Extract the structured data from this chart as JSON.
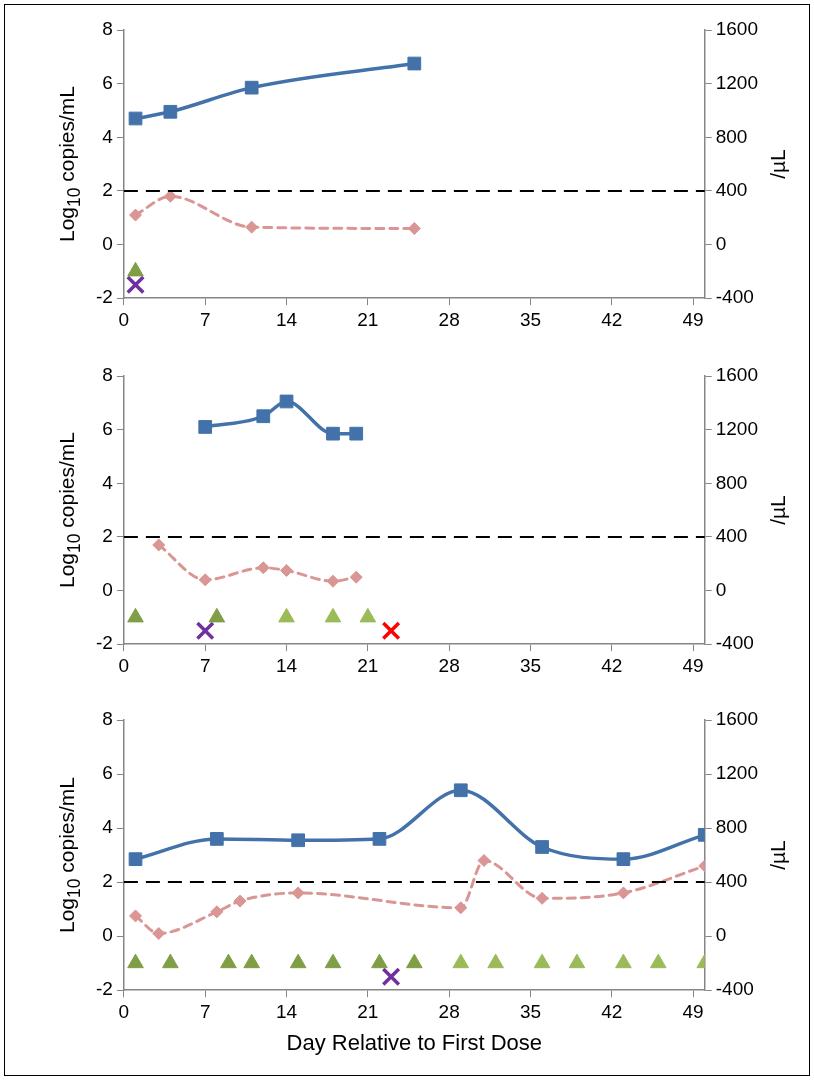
{
  "chart_data": [
    {
      "type": "line",
      "ylabel": "Log$_{10}$ copies/mL",
      "y2label": "/µL",
      "xlim": [
        0,
        50
      ],
      "xticks": [
        0,
        7,
        14,
        21,
        28,
        35,
        42,
        49
      ],
      "ylim": [
        -2,
        8
      ],
      "yticks": [
        -2,
        0,
        2,
        4,
        6,
        8
      ],
      "y2lim": [
        -400,
        1600
      ],
      "y2ticks": [
        -400,
        0,
        400,
        800,
        1200,
        1600
      ],
      "legend": false,
      "ref_lines": [
        {
          "axis": "y",
          "value": 2,
          "color": "#000000",
          "line_style": "dashed"
        }
      ],
      "series": [
        {
          "color": "#4372aa",
          "marker": "square",
          "line_style": "solid",
          "x": [
            1,
            4,
            11,
            25
          ],
          "values": [
            4.7,
            4.95,
            5.85,
            6.75
          ]
        },
        {
          "axis": "y2",
          "color": "#d99694",
          "marker": "diamond",
          "line_style": "dashed",
          "x": [
            1,
            4,
            11,
            25
          ],
          "values": [
            220,
            360,
            130,
            120
          ]
        },
        {
          "type": "scatter",
          "color": "#7f9e45",
          "marker": "triangle",
          "x": [
            1
          ],
          "values": [
            -1
          ]
        },
        {
          "type": "scatter",
          "color": "#7030a0",
          "marker": "cross",
          "x": [
            1
          ],
          "values": [
            -1.5
          ]
        }
      ]
    },
    {
      "type": "line",
      "ylabel": "Log$_{10}$ copies/mL",
      "y2label": "/µL",
      "xlim": [
        0,
        50
      ],
      "xticks": [
        0,
        7,
        14,
        21,
        28,
        35,
        42,
        49
      ],
      "ylim": [
        -2,
        8
      ],
      "yticks": [
        -2,
        0,
        2,
        4,
        6,
        8
      ],
      "y2lim": [
        -400,
        1600
      ],
      "y2ticks": [
        -400,
        0,
        400,
        800,
        1200,
        1600
      ],
      "legend": false,
      "ref_lines": [
        {
          "axis": "y",
          "value": 2,
          "color": "#000000",
          "line_style": "dashed"
        }
      ],
      "series": [
        {
          "color": "#4372aa",
          "marker": "square",
          "line_style": "solid",
          "x": [
            7,
            12,
            14,
            18,
            20
          ],
          "values": [
            6.1,
            6.5,
            7.05,
            5.85,
            5.85
          ]
        },
        {
          "axis": "y2",
          "color": "#d99694",
          "marker": "diamond",
          "line_style": "dashed",
          "x": [
            3,
            7,
            12,
            14,
            18,
            20
          ],
          "values": [
            340,
            80,
            170,
            150,
            70,
            100
          ]
        },
        {
          "type": "scatter",
          "color": "#7f9e45",
          "marker": "triangle",
          "x": [
            1,
            8
          ],
          "values": [
            -1,
            -1
          ]
        },
        {
          "type": "scatter",
          "color": "#9bbb59",
          "marker": "triangle",
          "x": [
            14,
            18,
            21
          ],
          "values": [
            -1,
            -1,
            -1
          ]
        },
        {
          "type": "scatter",
          "color": "#7030a0",
          "marker": "cross",
          "x": [
            7
          ],
          "values": [
            -1.5
          ]
        },
        {
          "type": "scatter",
          "color": "#ff0000",
          "marker": "cross",
          "x": [
            23
          ],
          "values": [
            -1.5
          ]
        }
      ]
    },
    {
      "type": "line",
      "xlabel": "Day Relative to First Dose",
      "ylabel": "Log$_{10}$ copies/mL",
      "y2label": "/µL",
      "xlim": [
        0,
        50
      ],
      "xticks": [
        0,
        7,
        14,
        21,
        28,
        35,
        42,
        49
      ],
      "ylim": [
        -2,
        8
      ],
      "yticks": [
        -2,
        0,
        2,
        4,
        6,
        8
      ],
      "y2lim": [
        -400,
        1600
      ],
      "y2ticks": [
        -400,
        0,
        400,
        800,
        1200,
        1600
      ],
      "legend": false,
      "ref_lines": [
        {
          "axis": "y",
          "value": 2,
          "color": "#000000",
          "line_style": "dashed"
        }
      ],
      "series": [
        {
          "color": "#4372aa",
          "marker": "square",
          "line_style": "solid",
          "x": [
            1,
            8,
            15,
            22,
            29,
            36,
            43,
            50
          ],
          "values": [
            2.85,
            3.6,
            3.55,
            3.6,
            5.4,
            3.3,
            2.85,
            3.75
          ]
        },
        {
          "axis": "y2",
          "color": "#d99694",
          "marker": "diamond",
          "line_style": "dashed",
          "x": [
            1,
            3,
            8,
            10,
            15,
            29,
            31,
            36,
            43,
            50
          ],
          "values": [
            150,
            20,
            180,
            260,
            320,
            210,
            560,
            280,
            320,
            520
          ]
        },
        {
          "type": "scatter",
          "color": "#7f9e45",
          "marker": "triangle",
          "x": [
            1,
            4,
            9,
            11,
            15,
            18,
            22,
            25
          ],
          "values": [
            -1,
            -1,
            -1,
            -1,
            -1,
            -1,
            -1,
            -1
          ]
        },
        {
          "type": "scatter",
          "color": "#9bbb59",
          "marker": "triangle",
          "x": [
            29,
            32,
            36,
            39,
            43,
            46,
            50
          ],
          "values": [
            -1,
            -1,
            -1,
            -1,
            -1,
            -1,
            -1
          ]
        },
        {
          "type": "scatter",
          "color": "#7030a0",
          "marker": "cross",
          "x": [
            23
          ],
          "values": [
            -1.5
          ]
        }
      ]
    }
  ]
}
